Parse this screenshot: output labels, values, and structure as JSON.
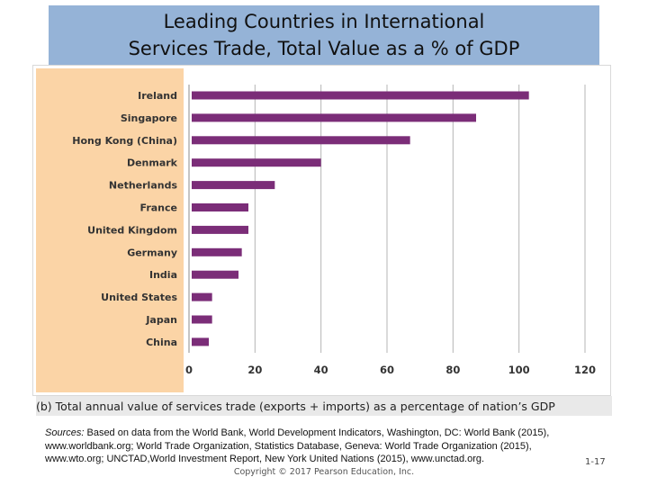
{
  "slide": {
    "title_line1": "Leading Countries in International",
    "title_line2": "Services Trade, Total Value as a % of GDP",
    "sources_label": "Sources:",
    "sources_text": "Based on data from the World Bank, World Development Indicators, Washington, DC: World Bank (2015), www.worldbank.org; World Trade Organization, Statistics Database, Geneva: World Trade Organization (2015), www.wto.org; UNCTAD,World Investment Report, New York United Nations (2015), www.unctad.org.",
    "copyright": "Copyright © 2017 Pearson Education, Inc.",
    "page_number": "1-17"
  },
  "chart_data": {
    "type": "bar",
    "orientation": "horizontal",
    "title": "",
    "caption": "(b) Total annual value of services trade (exports + imports) as a percentage of nation’s GDP",
    "categories": [
      "Ireland",
      "Singapore",
      "Hong Kong (China)",
      "Denmark",
      "Netherlands",
      "France",
      "United Kingdom",
      "Germany",
      "India",
      "United States",
      "Japan",
      "China"
    ],
    "values": [
      103,
      87,
      67,
      40,
      26,
      18,
      18,
      16,
      15,
      7,
      7,
      6
    ],
    "xlabel": "",
    "ylabel": "",
    "xlim": [
      0,
      120
    ],
    "xticks": [
      "0",
      "20",
      "40",
      "60",
      "80",
      "100",
      "120"
    ],
    "grid": true,
    "bar_color": "#7b2d78",
    "grid_color": "#b5b5b5"
  }
}
